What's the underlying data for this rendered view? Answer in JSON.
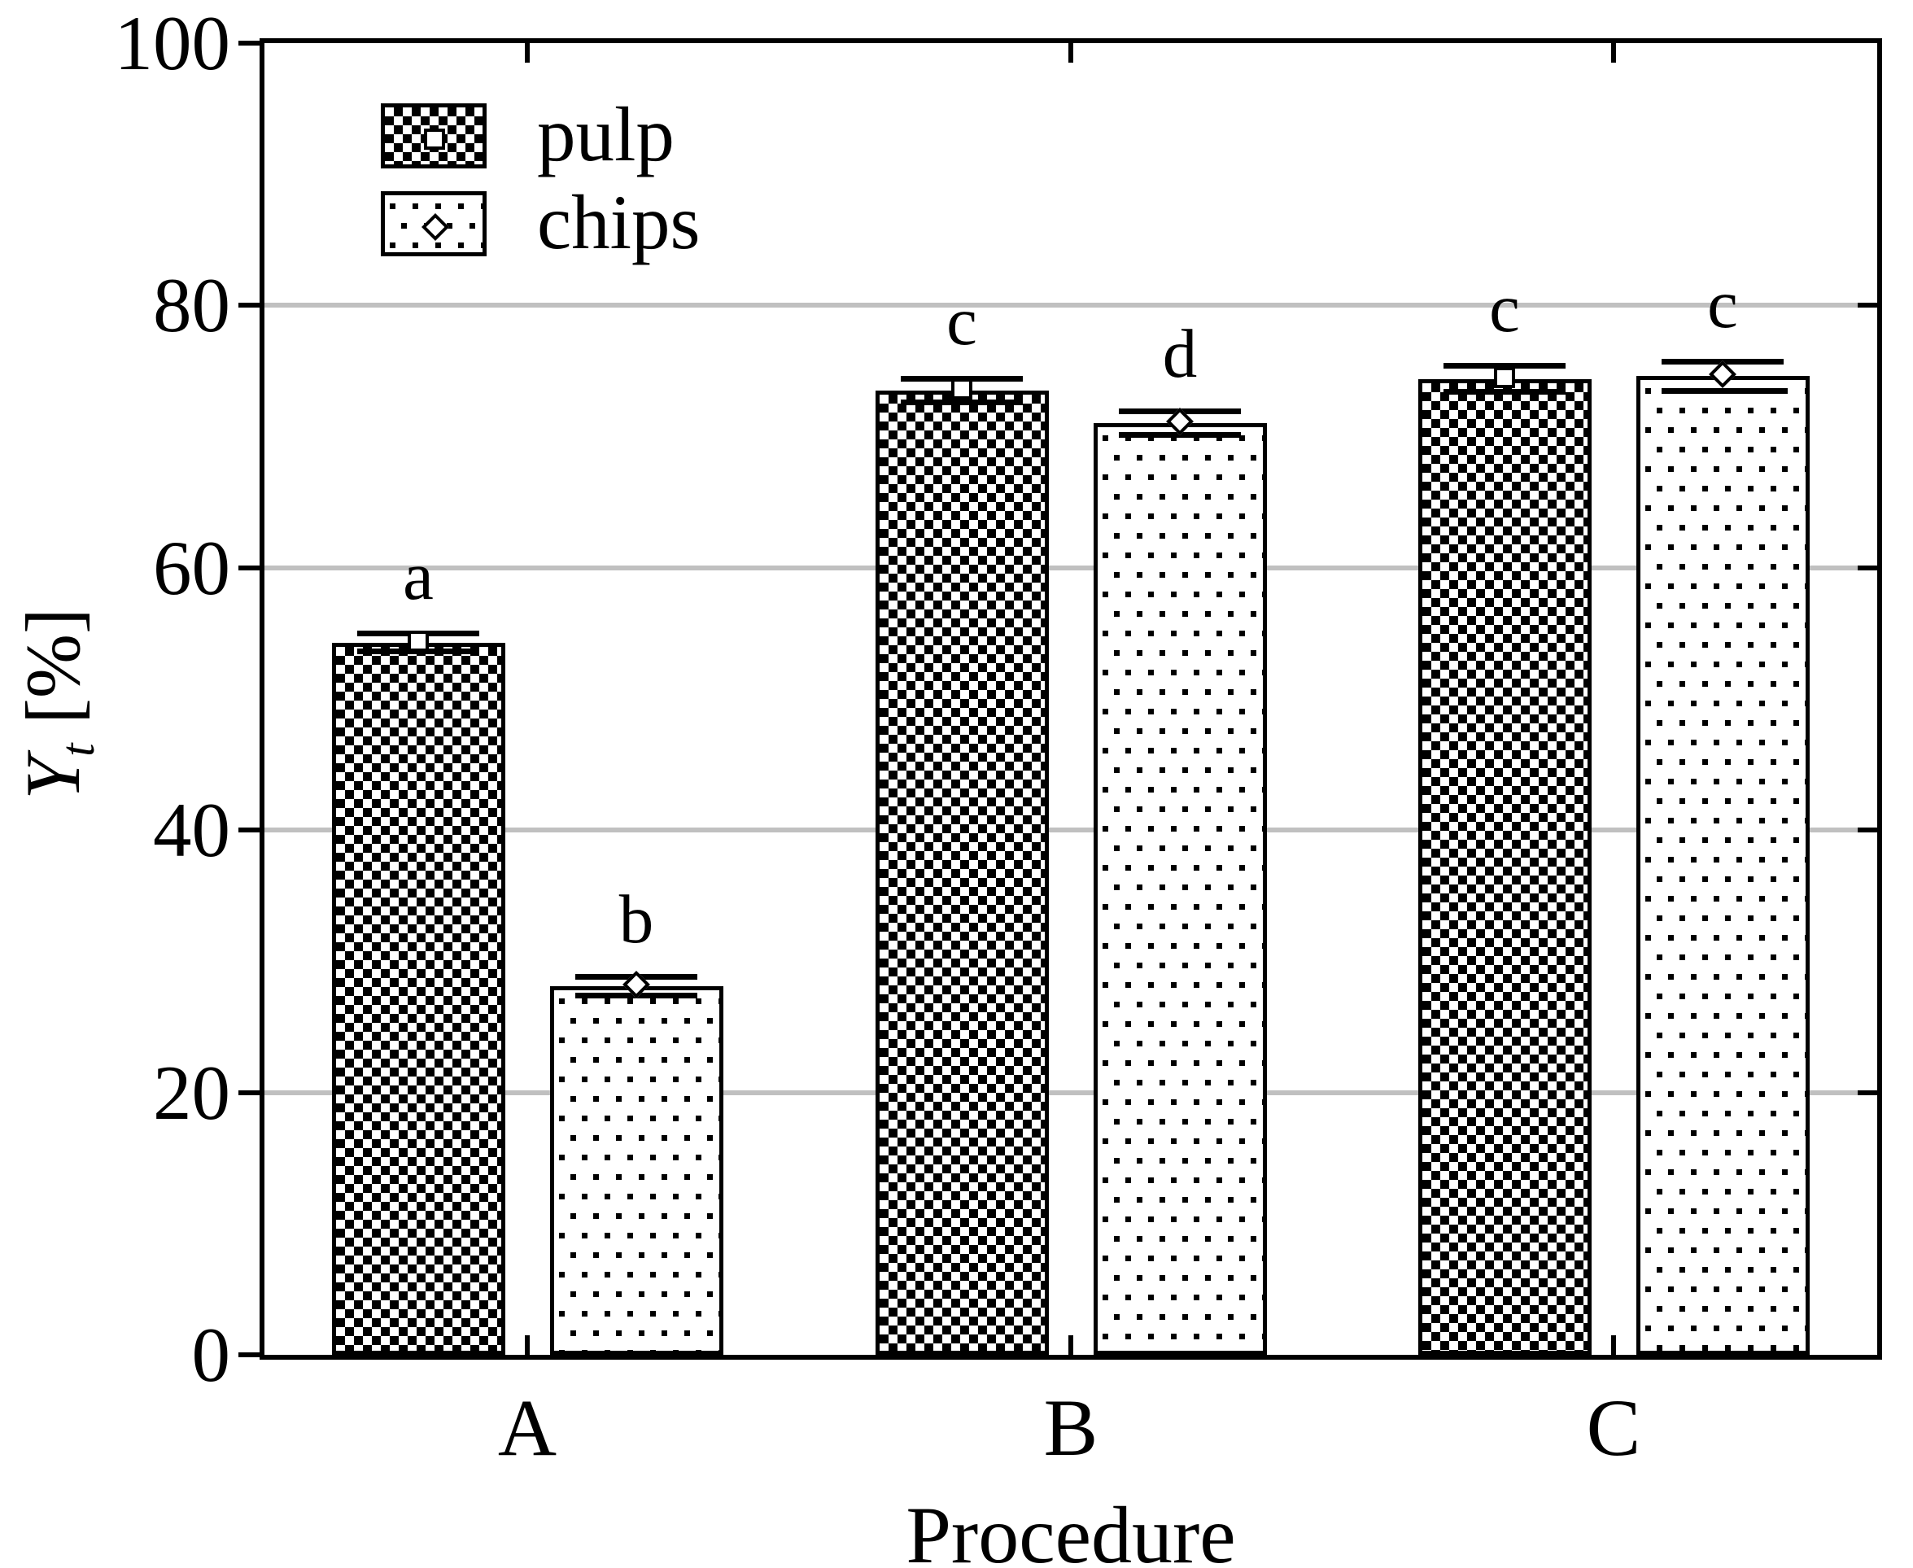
{
  "chart_data": {
    "type": "bar",
    "title": "",
    "xlabel": "Procedure",
    "ylabel": "Yt [%]",
    "ylabel_symbol": "Y",
    "ylabel_subscript": "t",
    "ylabel_unit": "[%]",
    "categories": [
      "A",
      "B",
      "C"
    ],
    "series": [
      {
        "name": "pulp",
        "pattern": "checkerboard",
        "marker": "open-square",
        "values": [
          54.3,
          73.5,
          74.4
        ],
        "errors": [
          0.7,
          0.9,
          1.0
        ],
        "sig_letters": [
          "a",
          "c",
          "c"
        ]
      },
      {
        "name": "chips",
        "pattern": "dot-grid",
        "marker": "open-diamond",
        "values": [
          28.1,
          71.0,
          74.6
        ],
        "errors": [
          0.7,
          0.9,
          1.1
        ],
        "sig_letters": [
          "b",
          "d",
          "c"
        ]
      }
    ],
    "ylim": [
      0,
      100
    ],
    "yticks": [
      0,
      20,
      40,
      60,
      80,
      100
    ],
    "grid": {
      "horizontal_at": [
        20,
        40,
        60,
        80
      ],
      "color": "#c0c0c0"
    },
    "legend_position": "top-left-inside"
  },
  "colors": {
    "ink": "#000000",
    "background": "#ffffff",
    "gridline": "#c0c0c0",
    "marker_fill": "#ffffff"
  }
}
